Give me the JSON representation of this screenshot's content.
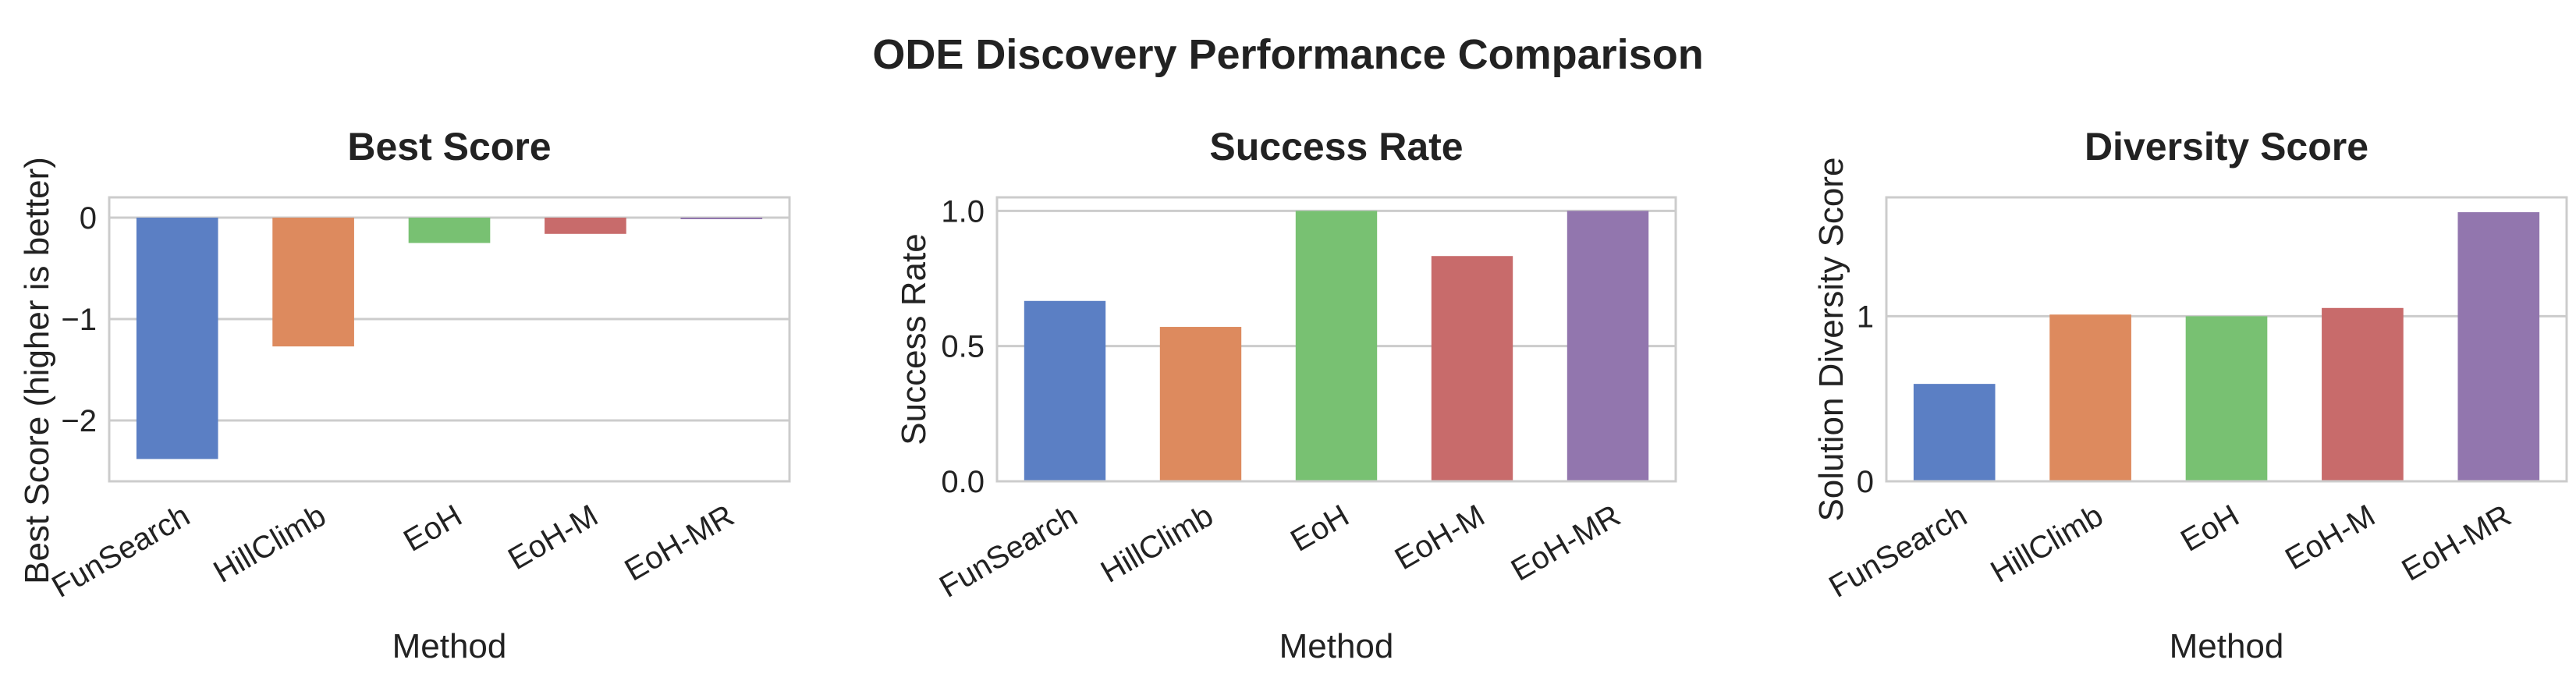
{
  "figure": {
    "title": "ODE Discovery Performance Comparison"
  },
  "chart_data": [
    {
      "type": "bar",
      "title": "Best Score",
      "xlabel": "Method",
      "ylabel": "Best Score (higher is better)",
      "categories": [
        "FunSearch",
        "HillClimb",
        "EoH",
        "EoH-M",
        "EoH-MR"
      ],
      "values": [
        -2.38,
        -1.27,
        -0.25,
        -0.16,
        -0.01
      ],
      "colors": [
        "#5b7fc4",
        "#dd8a5e",
        "#78c172",
        "#c86b6b",
        "#9276ae"
      ],
      "ylim": [
        -2.6,
        0.2
      ],
      "yticks": [
        0,
        -1,
        -2
      ],
      "ytick_labels": [
        "0",
        "−1",
        "−2"
      ],
      "grid": true
    },
    {
      "type": "bar",
      "title": "Success Rate",
      "xlabel": "Method",
      "ylabel": "Success Rate",
      "categories": [
        "FunSearch",
        "HillClimb",
        "EoH",
        "EoH-M",
        "EoH-MR"
      ],
      "values": [
        0.667,
        0.571,
        1.0,
        0.833,
        1.0
      ],
      "colors": [
        "#5b7fc4",
        "#dd8a5e",
        "#78c172",
        "#c86b6b",
        "#9276ae"
      ],
      "ylim": [
        0,
        1.05
      ],
      "yticks": [
        0,
        0.5,
        1.0
      ],
      "ytick_labels": [
        "0.0",
        "0.5",
        "1.0"
      ],
      "grid": true
    },
    {
      "type": "bar",
      "title": "Diversity Score",
      "xlabel": "Method",
      "ylabel": "Solution Diversity Score",
      "categories": [
        "FunSearch",
        "HillClimb",
        "EoH",
        "EoH-M",
        "EoH-MR"
      ],
      "values": [
        0.59,
        1.01,
        1.0,
        1.05,
        1.63
      ],
      "colors": [
        "#5b7fc4",
        "#dd8a5e",
        "#78c172",
        "#c86b6b",
        "#9276ae"
      ],
      "ylim": [
        0,
        1.72
      ],
      "yticks": [
        0,
        1
      ],
      "ytick_labels": [
        "0",
        "1"
      ],
      "grid": true
    }
  ]
}
